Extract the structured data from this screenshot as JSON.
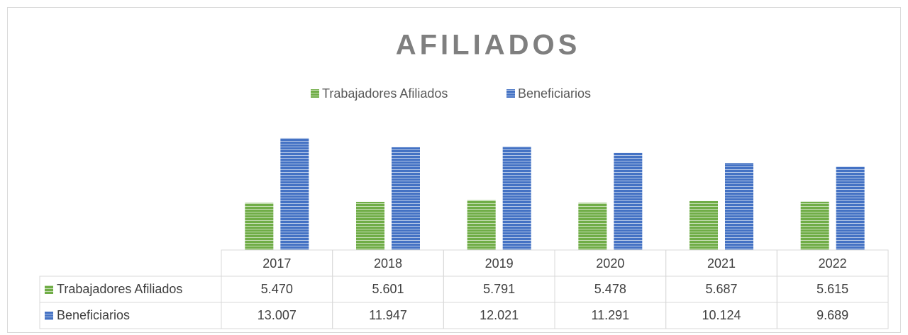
{
  "chart_data": {
    "type": "bar",
    "title": "AFILIADOS",
    "categories": [
      "2017",
      "2018",
      "2019",
      "2020",
      "2021",
      "2022"
    ],
    "series": [
      {
        "name": "Trabajadores Afiliados",
        "color": "#70ad47",
        "values": [
          5470,
          5601,
          5791,
          5478,
          5687,
          5615
        ],
        "value_labels": [
          "5.470",
          "5.601",
          "5.791",
          "5.478",
          "5.687",
          "5.615"
        ]
      },
      {
        "name": "Beneficiarios",
        "color": "#4472c4",
        "values": [
          13007,
          11947,
          12021,
          11291,
          10124,
          9689
        ],
        "value_labels": [
          "13.007",
          "11.947",
          "12.021",
          "11.291",
          "10.124",
          "9.689"
        ]
      }
    ],
    "legend": "top"
  }
}
